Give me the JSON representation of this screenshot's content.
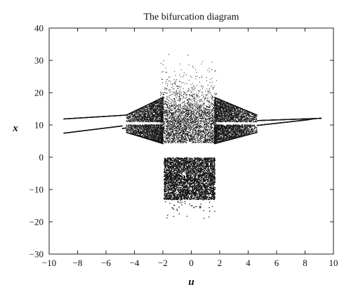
{
  "chart_data": {
    "type": "scatter",
    "title": "The bifurcation diagram",
    "xlabel": "u",
    "ylabel": "x",
    "xlim": [
      -10,
      10
    ],
    "ylim": [
      -30,
      40
    ],
    "x_ticks": [
      -10,
      -8,
      -6,
      -4,
      -2,
      0,
      2,
      4,
      6,
      8,
      10
    ],
    "y_ticks": [
      -30,
      -20,
      -10,
      0,
      10,
      20,
      30,
      40
    ],
    "x_tick_labels": [
      "−10",
      "−8",
      "−6",
      "−4",
      "−2",
      "0",
      "2",
      "4",
      "6",
      "8",
      "10"
    ],
    "y_tick_labels": [
      "−30",
      "−20",
      "−10",
      "0",
      "10",
      "20",
      "30",
      "40"
    ],
    "grid": false,
    "legend": "none",
    "marker_color": "#111111",
    "series": [
      {
        "description_points": [
          {
            "x": -9.0,
            "y": 12.0
          },
          {
            "x": -8.0,
            "y": 12.3
          },
          {
            "x": -7.0,
            "y": 12.6
          },
          {
            "x": -6.0,
            "y": 12.8
          },
          {
            "x": -5.0,
            "y": 13.0
          },
          {
            "x": -4.6,
            "y": 13.3
          },
          {
            "x": -4.6,
            "y": 11.0
          },
          {
            "x": -4.0,
            "y": 14.0
          },
          {
            "x": -4.0,
            "y": 10.0
          },
          {
            "x": -8.4,
            "y": 7.6
          },
          {
            "x": -7.0,
            "y": 8.4
          },
          {
            "x": -6.0,
            "y": 9.2
          },
          {
            "x": -5.0,
            "y": 10.0
          },
          {
            "x": -4.6,
            "y": 7.8
          },
          {
            "x": -4.0,
            "y": 6.5
          },
          {
            "x": -3.0,
            "y": 16.0
          },
          {
            "x": -3.0,
            "y": 5.5
          },
          {
            "x": -2.5,
            "y": 18.0
          },
          {
            "x": -2.0,
            "y": 22.0
          },
          {
            "x": -2.0,
            "y": 4.8
          },
          {
            "x": -2.0,
            "y": -3.0
          },
          {
            "x": -1.5,
            "y": -8.0
          },
          {
            "x": -1.0,
            "y": -12.0
          },
          {
            "x": -0.5,
            "y": 28.0
          },
          {
            "x": 0.0,
            "y": 31.0
          },
          {
            "x": 0.0,
            "y": -10.0
          },
          {
            "x": 0.5,
            "y": -12.0
          },
          {
            "x": 1.0,
            "y": -8.0
          },
          {
            "x": 1.5,
            "y": -4.0
          },
          {
            "x": 1.5,
            "y": 22.0
          },
          {
            "x": 2.0,
            "y": 5.0
          },
          {
            "x": 2.5,
            "y": 17.0
          },
          {
            "x": 3.0,
            "y": 15.0
          },
          {
            "x": 3.0,
            "y": 6.0
          },
          {
            "x": 4.0,
            "y": 13.5
          },
          {
            "x": 4.0,
            "y": 10.0
          },
          {
            "x": 4.6,
            "y": 12.5
          },
          {
            "x": 4.6,
            "y": 11.0
          },
          {
            "x": 5.0,
            "y": 11.5
          },
          {
            "x": 5.0,
            "y": 10.0
          },
          {
            "x": 6.0,
            "y": 11.2
          },
          {
            "x": 7.0,
            "y": 11.5
          },
          {
            "x": 8.0,
            "y": 11.8
          },
          {
            "x": 9.0,
            "y": 12.2
          }
        ]
      }
    ]
  }
}
